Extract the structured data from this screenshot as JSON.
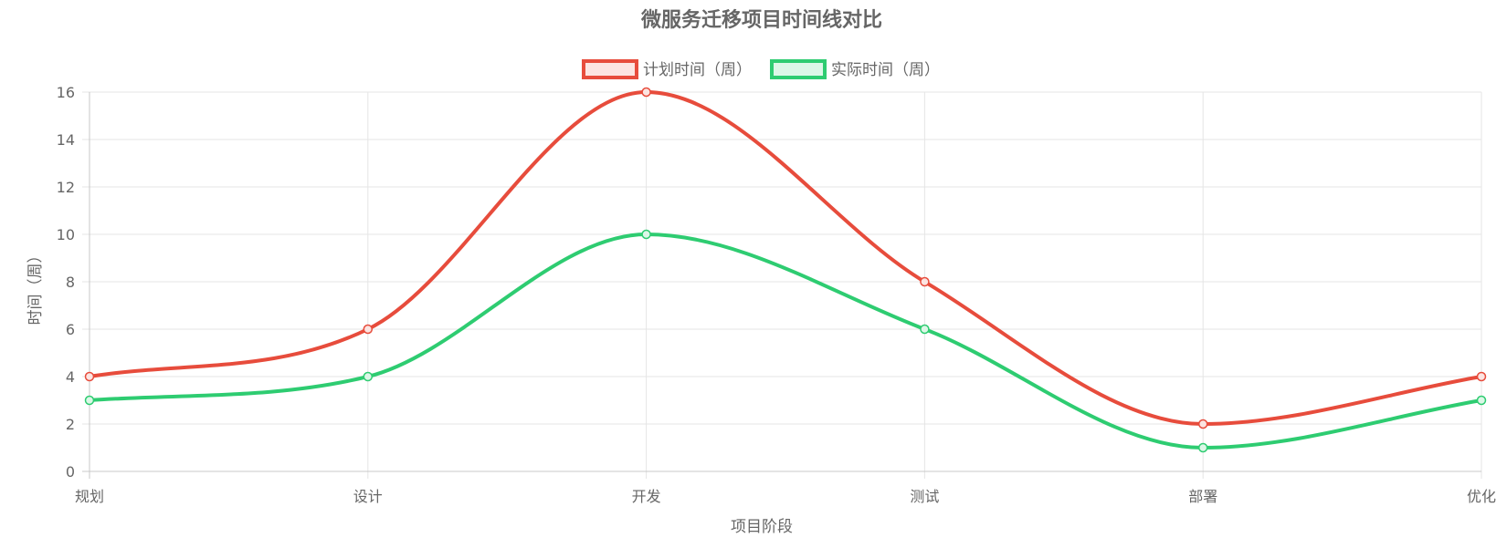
{
  "chart_data": {
    "type": "line",
    "title": "微服务迁移项目时间线对比",
    "xlabel": "项目阶段",
    "ylabel": "时间（周）",
    "categories": [
      "规划",
      "设计",
      "开发",
      "测试",
      "部署",
      "优化"
    ],
    "ylim": [
      0,
      16
    ],
    "yticks": [
      0,
      2,
      4,
      6,
      8,
      10,
      12,
      14,
      16
    ],
    "grid": true,
    "legend_position": "top-center",
    "smooth": true,
    "series": [
      {
        "name": "计划时间（周）",
        "values": [
          4,
          6,
          16,
          8,
          2,
          4
        ],
        "color": "#e74c3c",
        "fill": "#fce4e1"
      },
      {
        "name": "实际时间（周）",
        "values": [
          3,
          4,
          10,
          6,
          1,
          3
        ],
        "color": "#2ecc71",
        "fill": "#dcf7e7"
      }
    ]
  }
}
